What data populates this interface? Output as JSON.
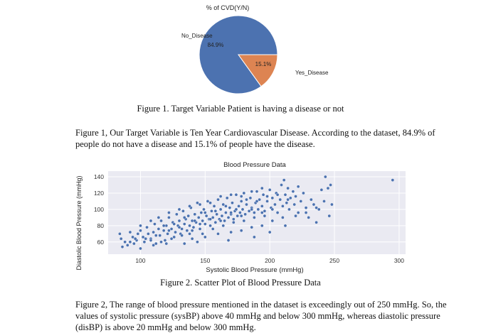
{
  "figure1": {
    "caption": "Figure 1. Target Variable Patient is having a disease or not",
    "paragraph": "Figure 1, Our Target Variable is Ten Year Cardiovascular Disease. According to the dataset, 84.9% of people do not have a disease and 15.1% of people have the disease."
  },
  "figure2": {
    "caption": "Figure 2. Scatter Plot of Blood Pressure Data",
    "paragraph": "Figure 2, The range of blood pressure mentioned in the dataset is exceedingly out of 250 mmHg. So, the values of systolic pressure (sysBP) above 40 mmHg and below 300 mmHg, whereas diastolic pressure (disBP) is above 20 mmHg and below 300 mmHg."
  },
  "chart_data": [
    {
      "type": "pie",
      "title": "% of CVD(Y/N)",
      "slices": [
        {
          "label": "No_Disease",
          "value": 84.9,
          "pct_label": "84.9%",
          "color": "#4c72b0"
        },
        {
          "label": "Yes_Disease",
          "value": 15.1,
          "pct_label": "15.1%",
          "color": "#dd8452"
        }
      ]
    },
    {
      "type": "scatter",
      "title": "Blood Pressure Data",
      "xlabel": "Systolic Blood Pressure (mmHg)",
      "ylabel": "Diastolic Blood Pressure (mmHg)",
      "xlim": [
        75,
        305
      ],
      "ylim": [
        45,
        147
      ],
      "xticks": [
        100,
        150,
        200,
        250,
        300
      ],
      "yticks": [
        60,
        80,
        100,
        120,
        140
      ],
      "grid": true,
      "background": "#eaeaf2",
      "point_color": "#4c72b0",
      "points": [
        [
          84,
          70
        ],
        [
          85,
          64
        ],
        [
          86,
          54
        ],
        [
          88,
          60
        ],
        [
          90,
          56
        ],
        [
          92,
          72
        ],
        [
          94,
          66
        ],
        [
          95,
          58
        ],
        [
          97,
          62
        ],
        [
          98,
          70
        ],
        [
          100,
          52
        ],
        [
          100,
          74
        ],
        [
          102,
          66
        ],
        [
          103,
          60
        ],
        [
          105,
          78
        ],
        [
          106,
          70
        ],
        [
          108,
          64
        ],
        [
          110,
          72
        ],
        [
          111,
          82
        ],
        [
          112,
          58
        ],
        [
          114,
          76
        ],
        [
          115,
          68
        ],
        [
          116,
          86
        ],
        [
          118,
          74
        ],
        [
          119,
          62
        ],
        [
          120,
          80
        ],
        [
          121,
          70
        ],
        [
          122,
          90
        ],
        [
          124,
          76
        ],
        [
          125,
          84
        ],
        [
          126,
          66
        ],
        [
          127,
          72
        ],
        [
          128,
          94
        ],
        [
          129,
          80
        ],
        [
          130,
          86
        ],
        [
          131,
          70
        ],
        [
          132,
          76
        ],
        [
          133,
          98
        ],
        [
          134,
          82
        ],
        [
          135,
          88
        ],
        [
          136,
          74
        ],
        [
          137,
          92
        ],
        [
          138,
          80
        ],
        [
          139,
          102
        ],
        [
          140,
          86
        ],
        [
          141,
          78
        ],
        [
          142,
          94
        ],
        [
          143,
          84
        ],
        [
          144,
          108
        ],
        [
          145,
          90
        ],
        [
          146,
          76
        ],
        [
          147,
          96
        ],
        [
          148,
          86
        ],
        [
          149,
          100
        ],
        [
          150,
          82
        ],
        [
          151,
          92
        ],
        [
          152,
          110
        ],
        [
          153,
          88
        ],
        [
          154,
          80
        ],
        [
          155,
          98
        ],
        [
          156,
          90
        ],
        [
          157,
          104
        ],
        [
          158,
          84
        ],
        [
          159,
          94
        ],
        [
          160,
          112
        ],
        [
          161,
          88
        ],
        [
          162,
          100
        ],
        [
          163,
          92
        ],
        [
          164,
          106
        ],
        [
          165,
          86
        ],
        [
          166,
          96
        ],
        [
          167,
          114
        ],
        [
          168,
          90
        ],
        [
          169,
          102
        ],
        [
          170,
          94
        ],
        [
          171,
          108
        ],
        [
          172,
          88
        ],
        [
          173,
          98
        ],
        [
          174,
          118
        ],
        [
          175,
          92
        ],
        [
          176,
          104
        ],
        [
          177,
          96
        ],
        [
          178,
          110
        ],
        [
          179,
          100
        ],
        [
          180,
          120
        ],
        [
          181,
          94
        ],
        [
          182,
          106
        ],
        [
          184,
          98
        ],
        [
          185,
          114
        ],
        [
          186,
          102
        ],
        [
          188,
          96
        ],
        [
          189,
          108
        ],
        [
          190,
          122
        ],
        [
          191,
          100
        ],
        [
          192,
          112
        ],
        [
          194,
          104
        ],
        [
          195,
          118
        ],
        [
          196,
          98
        ],
        [
          198,
          110
        ],
        [
          200,
          124
        ],
        [
          201,
          102
        ],
        [
          202,
          114
        ],
        [
          204,
          106
        ],
        [
          205,
          120
        ],
        [
          206,
          96
        ],
        [
          208,
          112
        ],
        [
          209,
          130
        ],
        [
          210,
          104
        ],
        [
          211,
          136
        ],
        [
          212,
          118
        ],
        [
          213,
          108
        ],
        [
          214,
          126
        ],
        [
          215,
          100
        ],
        [
          216,
          114
        ],
        [
          218,
          122
        ],
        [
          219,
          106
        ],
        [
          220,
          116
        ],
        [
          222,
          96
        ],
        [
          224,
          110
        ],
        [
          226,
          120
        ],
        [
          228,
          102
        ],
        [
          230,
          90
        ],
        [
          232,
          112
        ],
        [
          234,
          106
        ],
        [
          236,
          84
        ],
        [
          238,
          100
        ],
        [
          240,
          124
        ],
        [
          242,
          110
        ],
        [
          243,
          140
        ],
        [
          245,
          126
        ],
        [
          247,
          130
        ],
        [
          295,
          136
        ],
        [
          104,
          64
        ],
        [
          112,
          68
        ],
        [
          118,
          80
        ],
        [
          126,
          82
        ],
        [
          134,
          90
        ],
        [
          142,
          86
        ],
        [
          150,
          96
        ],
        [
          158,
          98
        ],
        [
          166,
          104
        ],
        [
          174,
          100
        ],
        [
          182,
          112
        ],
        [
          190,
          110
        ],
        [
          198,
          116
        ],
        [
          206,
          118
        ],
        [
          214,
          112
        ],
        [
          222,
          128
        ],
        [
          116,
          60
        ],
        [
          124,
          64
        ],
        [
          132,
          68
        ],
        [
          140,
          74
        ],
        [
          148,
          70
        ],
        [
          156,
          76
        ],
        [
          164,
          80
        ],
        [
          172,
          84
        ],
        [
          180,
          86
        ],
        [
          188,
          90
        ],
        [
          196,
          92
        ],
        [
          140,
          64
        ],
        [
          150,
          66
        ],
        [
          160,
          70
        ],
        [
          170,
          72
        ],
        [
          178,
          74
        ],
        [
          186,
          78
        ],
        [
          194,
          80
        ],
        [
          202,
          86
        ],
        [
          210,
          90
        ],
        [
          92,
          60
        ],
        [
          96,
          64
        ],
        [
          108,
          62
        ],
        [
          122,
          74
        ],
        [
          130,
          78
        ],
        [
          138,
          70
        ],
        [
          146,
          82
        ],
        [
          154,
          88
        ],
        [
          162,
          86
        ],
        [
          170,
          96
        ],
        [
          178,
          92
        ],
        [
          186,
          100
        ],
        [
          194,
          96
        ],
        [
          202,
          100
        ],
        [
          100,
          80
        ],
        [
          108,
          86
        ],
        [
          114,
          90
        ],
        [
          122,
          96
        ],
        [
          130,
          100
        ],
        [
          138,
          104
        ],
        [
          146,
          106
        ],
        [
          154,
          108
        ],
        [
          162,
          116
        ],
        [
          170,
          118
        ],
        [
          178,
          116
        ],
        [
          186,
          122
        ],
        [
          194,
          126
        ],
        [
          110,
          56
        ],
        [
          120,
          58
        ],
        [
          134,
          58
        ],
        [
          144,
          60
        ],
        [
          168,
          62
        ],
        [
          188,
          66
        ],
        [
          200,
          72
        ],
        [
          212,
          80
        ],
        [
          220,
          92
        ],
        [
          228,
          96
        ],
        [
          236,
          102
        ],
        [
          246,
          92
        ],
        [
          248,
          106
        ]
      ]
    }
  ]
}
